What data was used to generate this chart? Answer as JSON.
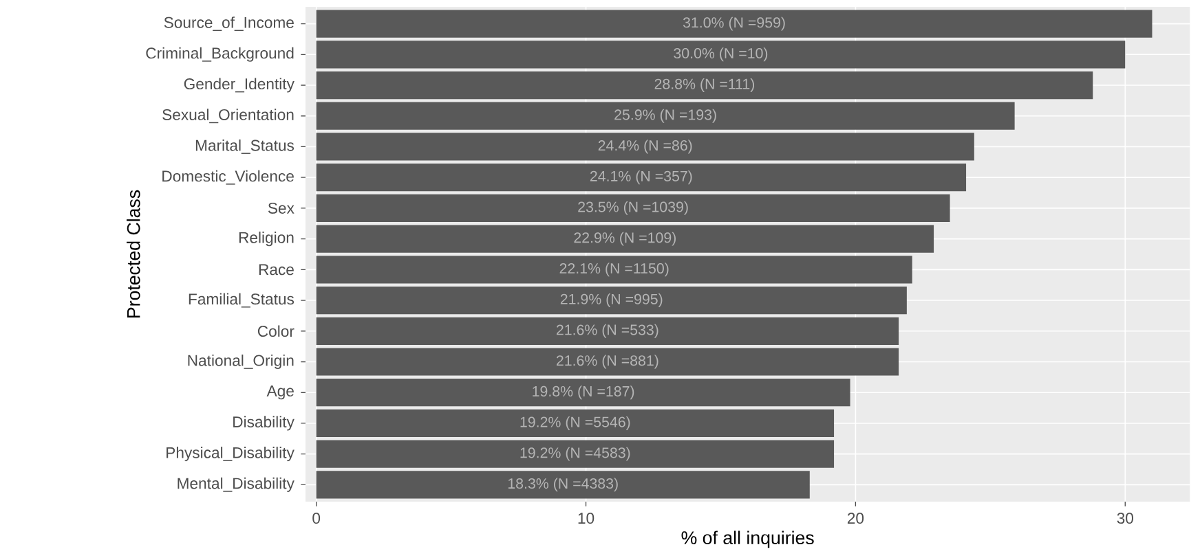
{
  "chart_data": {
    "type": "bar",
    "orientation": "horizontal",
    "xlabel": "% of all inquiries",
    "ylabel": "Protected Class",
    "categories": [
      "Source_of_Income",
      "Criminal_Background",
      "Gender_Identity",
      "Sexual_Orientation",
      "Marital_Status",
      "Domestic_Violence",
      "Sex",
      "Religion",
      "Race",
      "Familial_Status",
      "Color",
      "National_Origin",
      "Age",
      "Disability",
      "Physical_Disability",
      "Mental_Disability"
    ],
    "values": [
      31.0,
      30.0,
      28.8,
      25.9,
      24.4,
      24.1,
      23.5,
      22.9,
      22.1,
      21.9,
      21.6,
      21.6,
      19.8,
      19.2,
      19.2,
      18.3
    ],
    "value_labels": [
      "31.0%  (N =959)",
      "30.0%  (N =10)",
      "28.8%  (N =111)",
      "25.9%  (N =193)",
      "24.4%  (N =86)",
      "24.1%  (N =357)",
      "23.5%  (N =1039)",
      "22.9%  (N =109)",
      "22.1%  (N =1150)",
      "21.9%  (N =995)",
      "21.6%  (N =533)",
      "21.6%  (N =881)",
      "19.8%  (N =187)",
      "19.2%  (N =5546)",
      "19.2%  (N =4583)",
      "18.3%  (N =4383)"
    ],
    "color": "#595959",
    "xlim": [
      -0.4,
      32.4
    ],
    "xticks": [
      0,
      10,
      20,
      30
    ],
    "grid": true
  }
}
